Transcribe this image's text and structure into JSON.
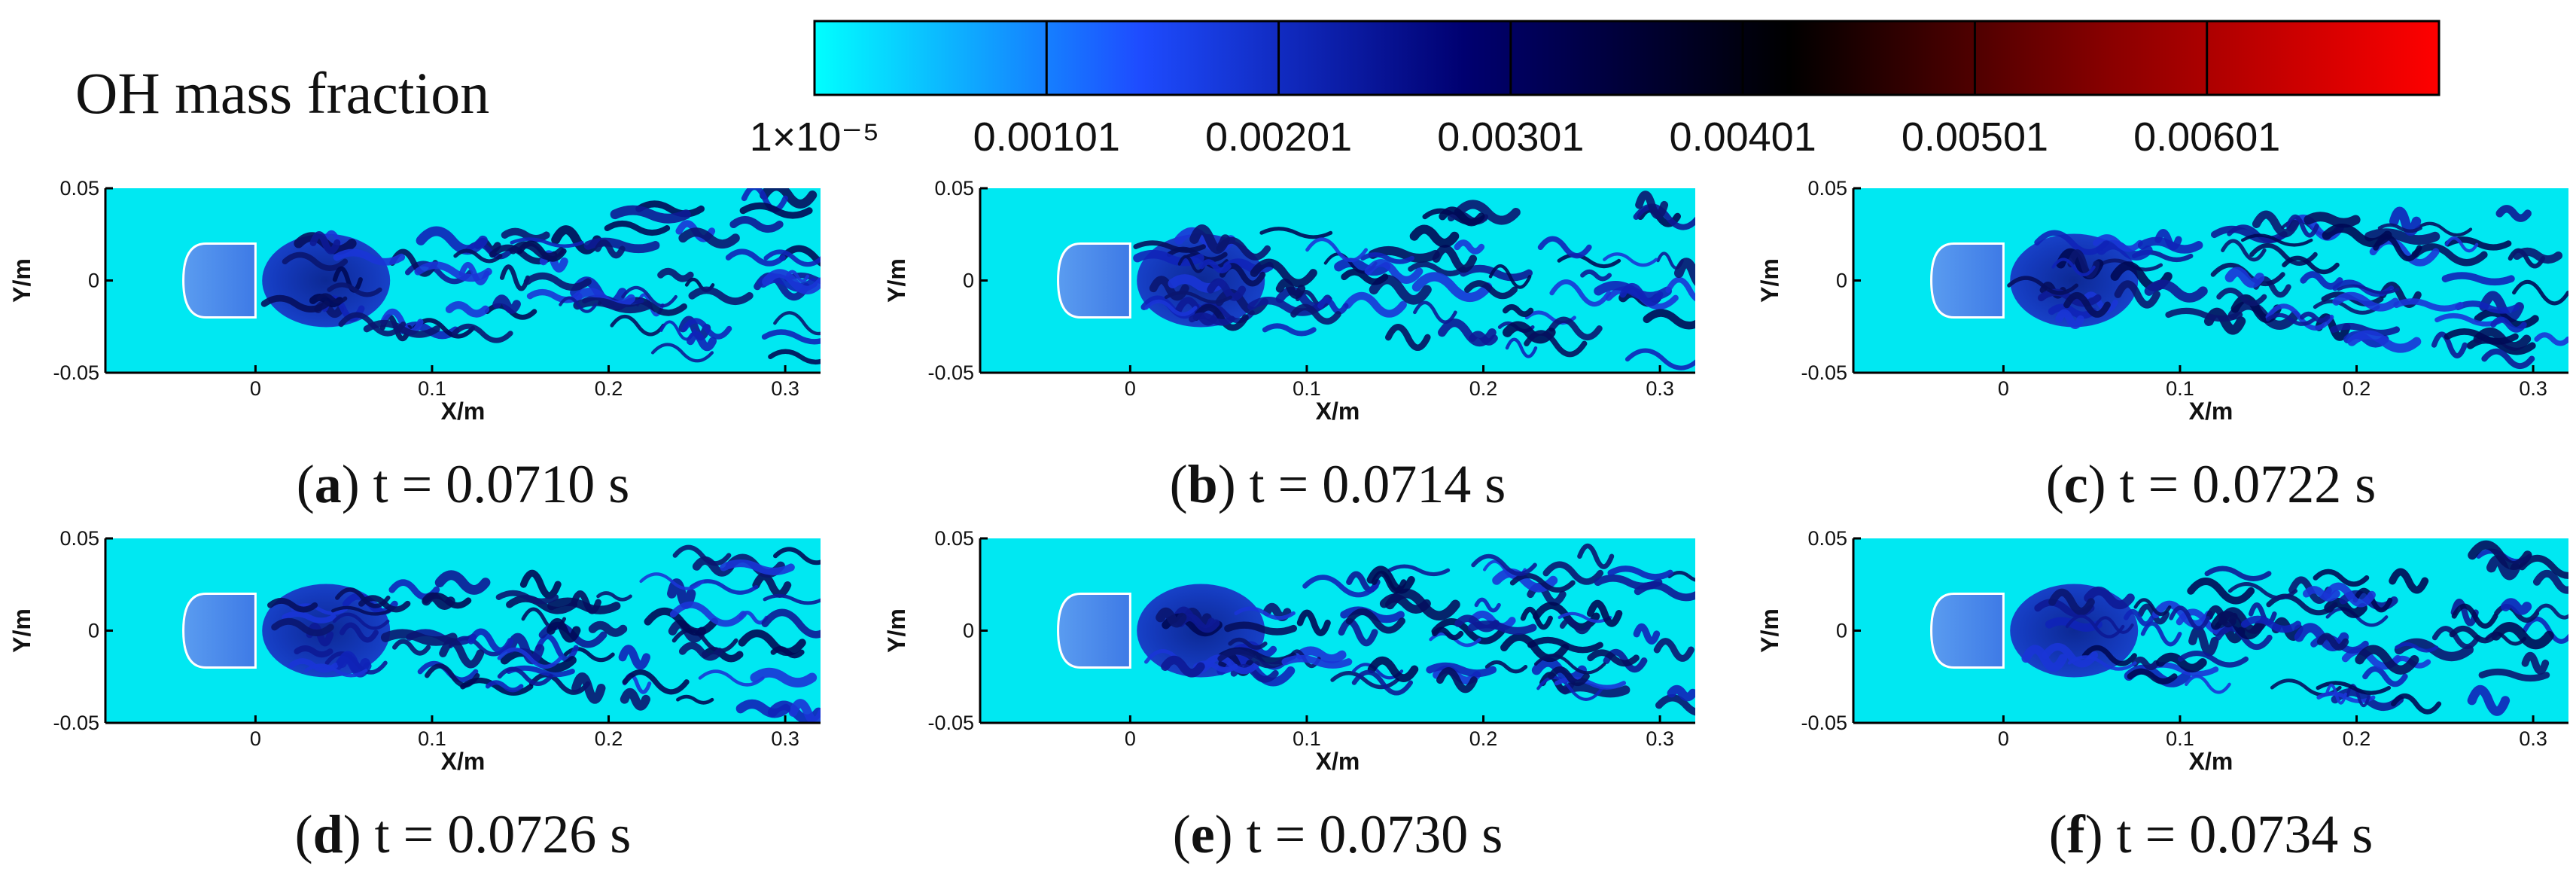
{
  "figure": {
    "title": "OH mass fraction"
  },
  "colorbar": {
    "tick_labels": [
      "1×10⁻⁵",
      "0.00101",
      "0.00201",
      "0.00301",
      "0.00401",
      "0.00501",
      "0.00601"
    ],
    "tick_values": [
      1e-05,
      0.00101,
      0.00201,
      0.00301,
      0.00401,
      0.00501,
      0.00601
    ],
    "range": [
      1e-05,
      0.00701
    ],
    "colors": [
      "#00ffff",
      "#1e4cff",
      "#000070",
      "#000000",
      "#8b0000",
      "#ff0000"
    ]
  },
  "chart_data": [
    {
      "type": "heatmap",
      "panel_letter": "a",
      "caption": " t = 0.0710 s",
      "xlabel": "X/m",
      "ylabel": "Y/m",
      "xticks": [
        "0",
        "0.1",
        "0.2",
        "0.3"
      ],
      "xtick_values": [
        0,
        0.1,
        0.2,
        0.3
      ],
      "yticks": [
        "0.05",
        "0",
        "-0.05"
      ],
      "ytick_values": [
        0.05,
        0,
        -0.05
      ],
      "xlim": [
        -0.085,
        0.32
      ],
      "ylim": [
        -0.05,
        0.05
      ]
    },
    {
      "type": "heatmap",
      "panel_letter": "b",
      "caption": " t = 0.0714 s",
      "xlabel": "X/m",
      "ylabel": "Y/m",
      "xticks": [
        "0",
        "0.1",
        "0.2",
        "0.3"
      ],
      "xtick_values": [
        0,
        0.1,
        0.2,
        0.3
      ],
      "yticks": [
        "0.05",
        "0",
        "-0.05"
      ],
      "ytick_values": [
        0.05,
        0,
        -0.05
      ],
      "xlim": [
        -0.085,
        0.32
      ],
      "ylim": [
        -0.05,
        0.05
      ]
    },
    {
      "type": "heatmap",
      "panel_letter": "c",
      "caption": " t = 0.0722 s",
      "xlabel": "X/m",
      "ylabel": "Y/m",
      "xticks": [
        "0",
        "0.1",
        "0.2",
        "0.3"
      ],
      "xtick_values": [
        0,
        0.1,
        0.2,
        0.3
      ],
      "yticks": [
        "0.05",
        "0",
        "-0.05"
      ],
      "ytick_values": [
        0.05,
        0,
        -0.05
      ],
      "xlim": [
        -0.085,
        0.32
      ],
      "ylim": [
        -0.05,
        0.05
      ]
    },
    {
      "type": "heatmap",
      "panel_letter": "d",
      "caption": " t = 0.0726 s",
      "xlabel": "X/m",
      "ylabel": "Y/m",
      "xticks": [
        "0",
        "0.1",
        "0.2",
        "0.3"
      ],
      "xtick_values": [
        0,
        0.1,
        0.2,
        0.3
      ],
      "yticks": [
        "0.05",
        "0",
        "-0.05"
      ],
      "ytick_values": [
        0.05,
        0,
        -0.05
      ],
      "xlim": [
        -0.085,
        0.32
      ],
      "ylim": [
        -0.05,
        0.05
      ]
    },
    {
      "type": "heatmap",
      "panel_letter": "e",
      "caption": " t = 0.0730 s",
      "xlabel": "X/m",
      "ylabel": "Y/m",
      "xticks": [
        "0",
        "0.1",
        "0.2",
        "0.3"
      ],
      "xtick_values": [
        0,
        0.1,
        0.2,
        0.3
      ],
      "yticks": [
        "0.05",
        "0",
        "-0.05"
      ],
      "ytick_values": [
        0.05,
        0,
        -0.05
      ],
      "xlim": [
        -0.085,
        0.32
      ],
      "ylim": [
        -0.05,
        0.05
      ]
    },
    {
      "type": "heatmap",
      "panel_letter": "f",
      "caption": " t = 0.0734 s",
      "xlabel": "X/m",
      "ylabel": "Y/m",
      "xticks": [
        "0",
        "0.1",
        "0.2",
        "0.3"
      ],
      "xtick_values": [
        0,
        0.1,
        0.2,
        0.3
      ],
      "yticks": [
        "0.05",
        "0",
        "-0.05"
      ],
      "ytick_values": [
        0.05,
        0,
        -0.05
      ],
      "xlim": [
        -0.085,
        0.32
      ],
      "ylim": [
        -0.05,
        0.05
      ]
    }
  ]
}
